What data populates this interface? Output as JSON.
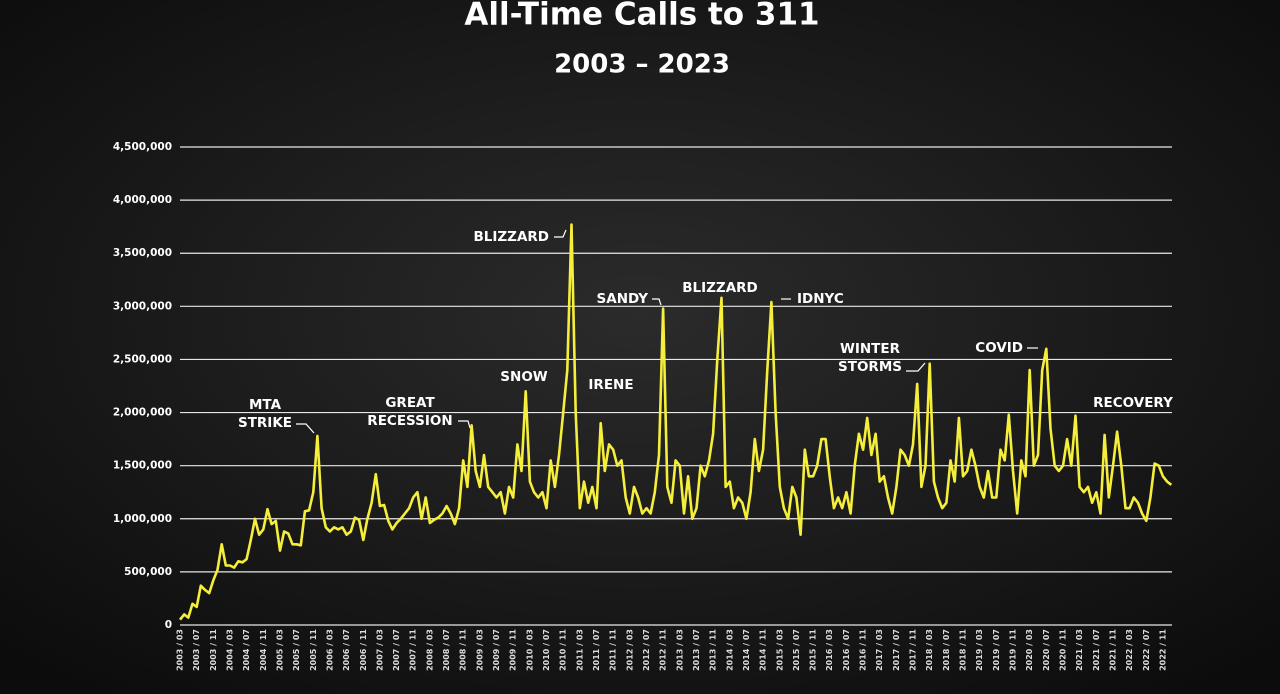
{
  "chart_data": {
    "type": "line",
    "title": "All-Time Calls to 311",
    "subtitle": "2003 – 2023",
    "categories": [
      "2003 / 03",
      null,
      null,
      null,
      "2003 / 07",
      null,
      null,
      null,
      "2003 / 11",
      null,
      null,
      null,
      "2004 / 03",
      null,
      null,
      null,
      "2004 / 07",
      null,
      null,
      null,
      "2004 / 11",
      null,
      null,
      null,
      "2005 / 03",
      null,
      null,
      null,
      "2005 / 07",
      null,
      null,
      null,
      "2005 / 11",
      null,
      null,
      null,
      "2006 / 03",
      null,
      null,
      null,
      "2006 / 07",
      null,
      null,
      null,
      "2006 / 11",
      null,
      null,
      null,
      "2007 / 03",
      null,
      null,
      null,
      "2007 / 07",
      null,
      null,
      null,
      "2007 / 11",
      null,
      null,
      null,
      "2008 / 03",
      null,
      null,
      null,
      "2008 / 07",
      null,
      null,
      null,
      "2008 / 11",
      null,
      null,
      null,
      "2009 / 03",
      null,
      null,
      null,
      "2009 / 07",
      null,
      null,
      null,
      "2009 / 11",
      null,
      null,
      null,
      "2010 / 03",
      null,
      null,
      null,
      "2010 / 07",
      null,
      null,
      null,
      "2010 / 11",
      null,
      null,
      null,
      "2011 / 03",
      null,
      null,
      null,
      "2011 / 07",
      null,
      null,
      null,
      "2011 / 11",
      null,
      null,
      null,
      "2012 / 03",
      null,
      null,
      null,
      "2012 / 07",
      null,
      null,
      null,
      "2012 / 11",
      null,
      null,
      null,
      "2013 / 03",
      null,
      null,
      null,
      "2013 / 07",
      null,
      null,
      null,
      "2013 / 11",
      null,
      null,
      null,
      "2014 / 03",
      null,
      null,
      null,
      "2014 / 07",
      null,
      null,
      null,
      "2014 / 11",
      null,
      null,
      null,
      "2015 / 03",
      null,
      null,
      null,
      "2015 / 07",
      null,
      null,
      null,
      "2015 / 11",
      null,
      null,
      null,
      "2016 / 03",
      null,
      null,
      null,
      "2016 / 07",
      null,
      null,
      null,
      "2016 / 11",
      null,
      null,
      null,
      "2017 / 03",
      null,
      null,
      null,
      "2017 / 07",
      null,
      null,
      null,
      "2017 / 11",
      null,
      null,
      null,
      "2018 / 03",
      null,
      null,
      null,
      "2018 / 07",
      null,
      null,
      null,
      "2018 / 11",
      null,
      null,
      null,
      "2019 / 03",
      null,
      null,
      null,
      "2019 / 07",
      null,
      null,
      null,
      "2019 / 11",
      null,
      null,
      null,
      "2020 / 03",
      null,
      null,
      null,
      "2020 / 07",
      null,
      null,
      null,
      "2020 / 11",
      null,
      null,
      null,
      "2021 / 03",
      null,
      null,
      null,
      "2021 / 07",
      null,
      null,
      null,
      "2021 / 11",
      null,
      null,
      null,
      "2022 / 03",
      null,
      null,
      null,
      "2022 / 07",
      null,
      null,
      null,
      "2022 / 11",
      null,
      null
    ],
    "series": [
      {
        "color": "#f5ee3a",
        "values": [
          50000,
          100000,
          70000,
          200000,
          170000,
          370000,
          330000,
          300000,
          420000,
          520000,
          760000,
          560000,
          560000,
          540000,
          600000,
          590000,
          620000,
          800000,
          1000000,
          850000,
          900000,
          1090000,
          950000,
          980000,
          700000,
          880000,
          860000,
          760000,
          760000,
          750000,
          1070000,
          1080000,
          1250000,
          1780000,
          1100000,
          920000,
          880000,
          920000,
          900000,
          920000,
          850000,
          880000,
          1010000,
          990000,
          800000,
          1000000,
          1150000,
          1420000,
          1120000,
          1130000,
          980000,
          900000,
          960000,
          1000000,
          1050000,
          1100000,
          1200000,
          1250000,
          1000000,
          1200000,
          960000,
          990000,
          1010000,
          1050000,
          1120000,
          1050000,
          950000,
          1100000,
          1550000,
          1300000,
          1880000,
          1450000,
          1300000,
          1600000,
          1300000,
          1250000,
          1200000,
          1250000,
          1050000,
          1300000,
          1200000,
          1700000,
          1450000,
          2200000,
          1350000,
          1250000,
          1200000,
          1250000,
          1100000,
          1550000,
          1300000,
          1600000,
          2000000,
          2400000,
          3770000,
          2000000,
          1100000,
          1350000,
          1150000,
          1300000,
          1100000,
          1900000,
          1450000,
          1700000,
          1650000,
          1500000,
          1550000,
          1200000,
          1050000,
          1300000,
          1200000,
          1050000,
          1100000,
          1050000,
          1250000,
          1600000,
          2980000,
          1300000,
          1150000,
          1550000,
          1500000,
          1050000,
          1400000,
          1000000,
          1100000,
          1500000,
          1400000,
          1550000,
          1800000,
          2500000,
          3080000,
          1300000,
          1350000,
          1100000,
          1200000,
          1150000,
          1000000,
          1250000,
          1750000,
          1450000,
          1650000,
          2400000,
          3040000,
          2000000,
          1300000,
          1100000,
          1000000,
          1300000,
          1200000,
          850000,
          1650000,
          1400000,
          1400000,
          1500000,
          1750000,
          1750000,
          1400000,
          1100000,
          1200000,
          1100000,
          1250000,
          1050000,
          1500000,
          1800000,
          1650000,
          1950000,
          1600000,
          1800000,
          1350000,
          1400000,
          1200000,
          1050000,
          1300000,
          1650000,
          1600000,
          1500000,
          1700000,
          2270000,
          1300000,
          1500000,
          2460000,
          1350000,
          1200000,
          1100000,
          1150000,
          1550000,
          1350000,
          1950000,
          1400000,
          1450000,
          1650000,
          1500000,
          1300000,
          1200000,
          1450000,
          1200000,
          1200000,
          1650000,
          1550000,
          1980000,
          1450000,
          1050000,
          1550000,
          1400000,
          2400000,
          1500000,
          1600000,
          2400000,
          2600000,
          1850000,
          1500000,
          1450000,
          1500000,
          1750000,
          1500000,
          1970000,
          1300000,
          1250000,
          1300000,
          1150000,
          1250000,
          1050000,
          1790000,
          1200000,
          1500000,
          1820000,
          1500000,
          1100000,
          1100000,
          1200000,
          1150000,
          1050000,
          980000,
          1200000,
          1520000,
          1500000,
          1400000,
          1350000,
          1320000
        ]
      }
    ],
    "ylim": [
      0,
      4500000
    ],
    "yticks": [
      0,
      {
        "value": 500000,
        "label": "500,000"
      },
      {
        "value": 1000000,
        "label": "1,000,000"
      },
      {
        "value": 1500000,
        "label": "1,500,000"
      },
      {
        "value": 2000000,
        "label": "2,000,000"
      },
      {
        "value": 2500000,
        "label": "2,500,000"
      },
      {
        "value": 3000000,
        "label": "3,000,000"
      },
      {
        "value": 3500000,
        "label": "3,500,000"
      },
      {
        "value": 4000000,
        "label": "4,000,000"
      },
      {
        "value": 4500000,
        "label": "4,500,000"
      }
    ],
    "grid": true,
    "annotations": [
      [
        "MTA",
        "STRIKE"
      ],
      [
        "GREAT",
        "RECESSION"
      ],
      [
        "SNOW"
      ],
      [
        "BLIZZARD"
      ],
      [
        "IRENE"
      ],
      [
        "SANDY"
      ],
      [
        "BLIZZARD"
      ],
      [
        "IDNYC"
      ],
      [
        "WINTER",
        "STORMS"
      ],
      [
        "COVID"
      ],
      [
        "RECOVERY"
      ]
    ]
  }
}
